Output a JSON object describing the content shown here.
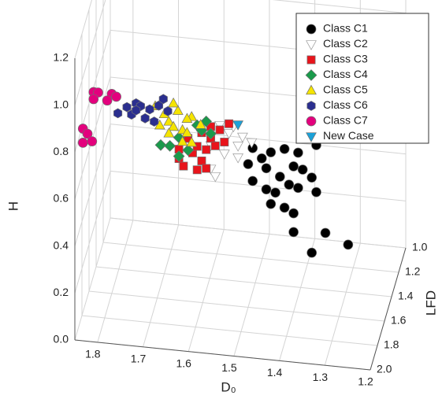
{
  "chart_data": {
    "type": "scatter3d",
    "x_label": "D₀",
    "y_label": "LFD",
    "z_label": "H",
    "xlim": [
      1.85,
      1.2
    ],
    "xticks": [
      1.8,
      1.7,
      1.6,
      1.5,
      1.4,
      1.3,
      1.2
    ],
    "ylim": [
      2.0,
      1.0
    ],
    "yticks": [
      {
        "value": 1.0,
        "label": "1.0"
      },
      1.2,
      1.4,
      1.6,
      1.8,
      {
        "value": 2.0,
        "label": "2.0"
      }
    ],
    "zlim": [
      0,
      1.2
    ],
    "zticks": [
      {
        "value": 0,
        "label": "0.0"
      },
      0.2,
      0.4,
      0.6,
      0.8,
      {
        "value": 1.0,
        "label": "1.0"
      },
      1.2
    ],
    "grid": true,
    "legend": "upper right",
    "series": [
      {
        "name": "Class C1",
        "color": "#000000",
        "marker": "circle",
        "x": [
          1.49,
          1.47,
          1.5,
          1.45,
          1.42,
          1.39,
          1.46,
          1.43,
          1.4,
          1.49,
          1.46,
          1.44,
          1.41,
          1.39,
          1.36,
          1.45,
          1.42,
          1.4,
          1.35,
          1.4,
          1.33,
          1.36,
          1.28,
          1.38,
          1.35
        ],
        "y": [
          1.6,
          1.6,
          1.6,
          1.6,
          1.6,
          1.6,
          1.6,
          1.6,
          1.6,
          1.6,
          1.6,
          1.6,
          1.6,
          1.6,
          1.6,
          1.6,
          1.6,
          1.6,
          1.6,
          1.6,
          1.6,
          1.6,
          1.6,
          1.6,
          1.6
        ],
        "z": [
          0.68,
          0.64,
          0.61,
          0.67,
          0.69,
          0.68,
          0.6,
          0.57,
          0.62,
          0.54,
          0.51,
          0.5,
          0.54,
          0.53,
          0.58,
          0.45,
          0.44,
          0.42,
          0.52,
          0.34,
          0.35,
          0.26,
          0.31,
          0.61,
          0.72
        ]
      },
      {
        "name": "Class C2",
        "color": "#ffffff",
        "marker": "triangle-down",
        "x": [
          1.57,
          1.55,
          1.53,
          1.59,
          1.56,
          1.53,
          1.59,
          1.58,
          1.52,
          1.5,
          1.54
        ],
        "y": [
          1.5,
          1.5,
          1.5,
          1.5,
          1.5,
          1.5,
          1.5,
          1.5,
          1.5,
          1.5,
          1.5
        ],
        "z": [
          0.71,
          0.68,
          0.63,
          0.62,
          0.59,
          0.58,
          0.52,
          0.49,
          0.67,
          0.65,
          0.71
        ]
      },
      {
        "name": "Class C3",
        "color": "#e8141b",
        "marker": "square",
        "x": [
          1.66,
          1.65,
          1.63,
          1.61,
          1.6,
          1.59,
          1.57,
          1.59,
          1.62,
          1.64,
          1.66,
          1.6,
          1.62,
          1.58,
          1.56,
          1.55,
          1.61
        ],
        "y": [
          1.5,
          1.5,
          1.5,
          1.5,
          1.5,
          1.5,
          1.5,
          1.5,
          1.5,
          1.5,
          1.5,
          1.5,
          1.5,
          1.5,
          1.5,
          1.5,
          1.5
        ],
        "z": [
          0.55,
          0.52,
          0.58,
          0.55,
          0.6,
          0.65,
          0.69,
          0.7,
          0.61,
          0.64,
          0.59,
          0.52,
          0.51,
          0.62,
          0.64,
          0.72,
          0.67
        ]
      },
      {
        "name": "Class C4",
        "color": "#1a9a4b",
        "marker": "diamond",
        "x": [
          1.66,
          1.64,
          1.62,
          1.61,
          1.59,
          1.7,
          1.68,
          1.66,
          1.6
        ],
        "y": [
          1.5,
          1.5,
          1.5,
          1.5,
          1.5,
          1.5,
          1.5,
          1.5,
          1.5
        ],
        "z": [
          0.56,
          0.59,
          0.7,
          0.68,
          0.67,
          0.6,
          0.6,
          0.64,
          0.72
        ]
      },
      {
        "name": "Class C5",
        "color": "#f5e400",
        "marker": "triangle-up",
        "x": [
          1.72,
          1.7,
          1.69,
          1.68,
          1.66,
          1.65,
          1.64,
          1.67,
          1.65,
          1.62,
          1.71,
          1.69,
          1.64,
          1.66,
          1.68
        ],
        "y": [
          1.4,
          1.4,
          1.4,
          1.4,
          1.4,
          1.4,
          1.4,
          1.4,
          1.4,
          1.4,
          1.4,
          1.4,
          1.4,
          1.4,
          1.4
        ],
        "z": [
          0.71,
          0.68,
          0.65,
          0.63,
          0.62,
          0.61,
          0.68,
          0.7,
          0.67,
          0.65,
          0.63,
          0.6,
          0.57,
          0.57,
          0.73
        ]
      },
      {
        "name": "Class C6",
        "color": "#2b2f8f",
        "marker": "hexagon",
        "x": [
          1.81,
          1.79,
          1.77,
          1.76,
          1.74,
          1.72,
          1.71,
          1.75,
          1.78,
          1.73,
          1.77,
          1.7
        ],
        "y": [
          1.3,
          1.3,
          1.3,
          1.3,
          1.3,
          1.3,
          1.3,
          1.3,
          1.3,
          1.3,
          1.3,
          1.3
        ],
        "z": [
          0.61,
          0.64,
          0.66,
          0.65,
          0.64,
          0.66,
          0.69,
          0.6,
          0.61,
          0.59,
          0.63,
          0.64
        ]
      },
      {
        "name": "Class C7",
        "color": "#e3007d",
        "marker": "circle",
        "x": [
          1.84,
          1.83,
          1.84,
          1.82,
          1.84,
          1.83,
          1.8,
          1.79,
          1.84,
          1.81
        ],
        "y": [
          1.9,
          1.9,
          1.9,
          1.9,
          1.6,
          1.6,
          1.6,
          1.6,
          1.6,
          1.6
        ],
        "z": [
          0.85,
          0.83,
          0.79,
          0.8,
          0.85,
          0.85,
          0.85,
          0.84,
          0.82,
          0.82
        ]
      },
      {
        "name": "New Case",
        "color": "#1ba1d8",
        "marker": "triangle-down",
        "x": [
          1.53
        ],
        "y": [
          1.5
        ],
        "z": [
          0.72
        ]
      }
    ]
  }
}
